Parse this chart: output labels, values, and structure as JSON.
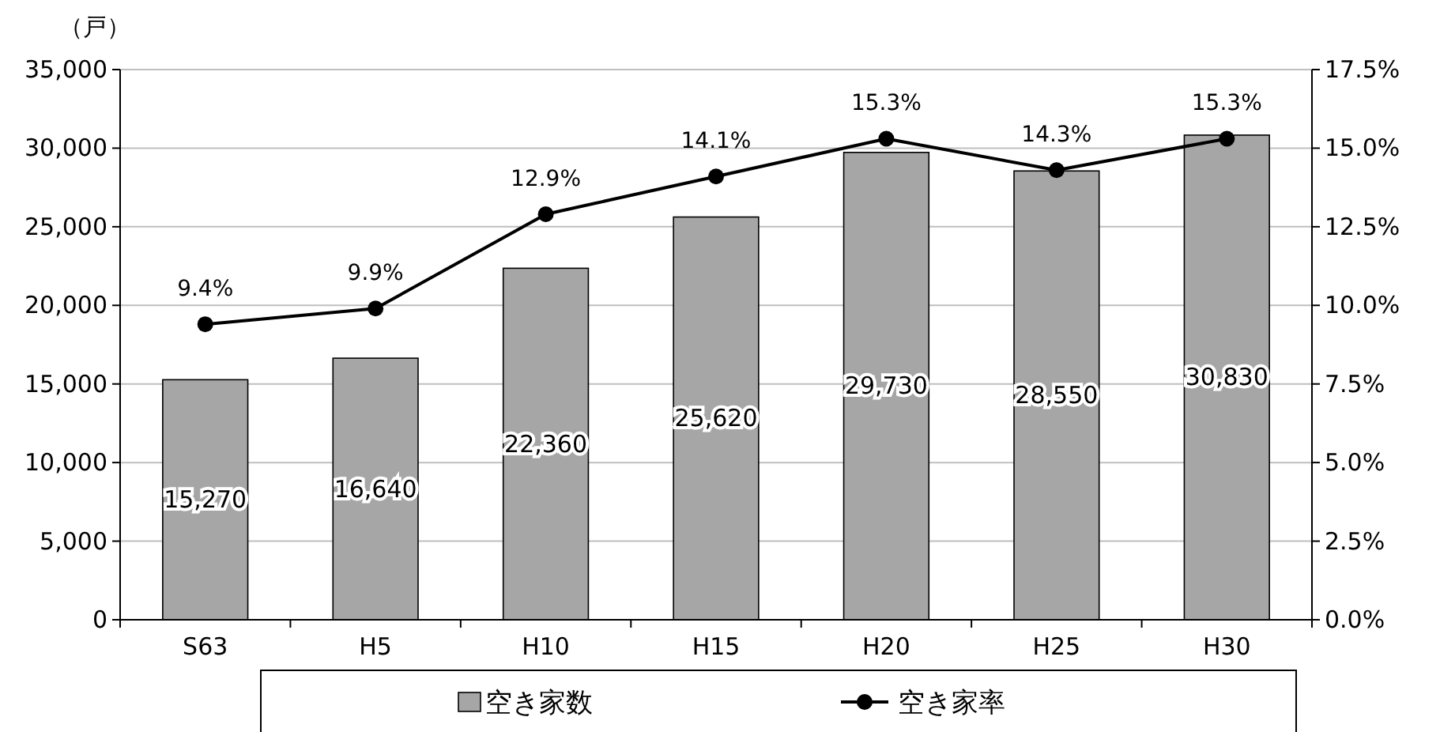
{
  "chart_data": {
    "type": "bar",
    "ylabel": "（戸）",
    "categories": [
      "S63",
      "H5",
      "H10",
      "H15",
      "H20",
      "H25",
      "H30"
    ],
    "series": [
      {
        "name": "空き家数",
        "color": "#a6a6a6",
        "values": [
          15270,
          16640,
          22360,
          25620,
          29730,
          28550,
          30830
        ],
        "value_labels": [
          "15,270",
          "16,640",
          "22,360",
          "25,620",
          "29,730",
          "28,550",
          "30,830"
        ]
      },
      {
        "name": "空き家率",
        "type": "line",
        "axis": "y2",
        "color": "#000000",
        "marker": "circle",
        "values": [
          9.4,
          9.9,
          12.9,
          14.1,
          15.3,
          14.3,
          15.3
        ],
        "value_labels": [
          "9.4%",
          "9.9%",
          "12.9%",
          "14.1%",
          "15.3%",
          "14.3%",
          "15.3%"
        ]
      }
    ],
    "ylim": [
      0,
      35000
    ],
    "yticks": [
      {
        "value": 0,
        "label": "0"
      },
      {
        "value": 5000,
        "label": "5,000"
      },
      {
        "value": 10000,
        "label": "10,000"
      },
      {
        "value": 15000,
        "label": "15,000"
      },
      {
        "value": 20000,
        "label": "20,000"
      },
      {
        "value": 25000,
        "label": "25,000"
      },
      {
        "value": 30000,
        "label": "30,000"
      },
      {
        "value": 35000,
        "label": "35,000"
      }
    ],
    "y2lim": [
      0,
      17.5
    ],
    "y2ticks": [
      {
        "value": 0,
        "label": "0.0%"
      },
      {
        "value": 2.5,
        "label": "2.5%"
      },
      {
        "value": 5,
        "label": "5.0%"
      },
      {
        "value": 7.5,
        "label": "7.5%"
      },
      {
        "value": 10,
        "label": "10.0%"
      },
      {
        "value": 12.5,
        "label": "12.5%"
      },
      {
        "value": 15,
        "label": "15.0%"
      },
      {
        "value": 17.5,
        "label": "17.5%"
      }
    ],
    "grid": "y",
    "legend": "bottom"
  }
}
